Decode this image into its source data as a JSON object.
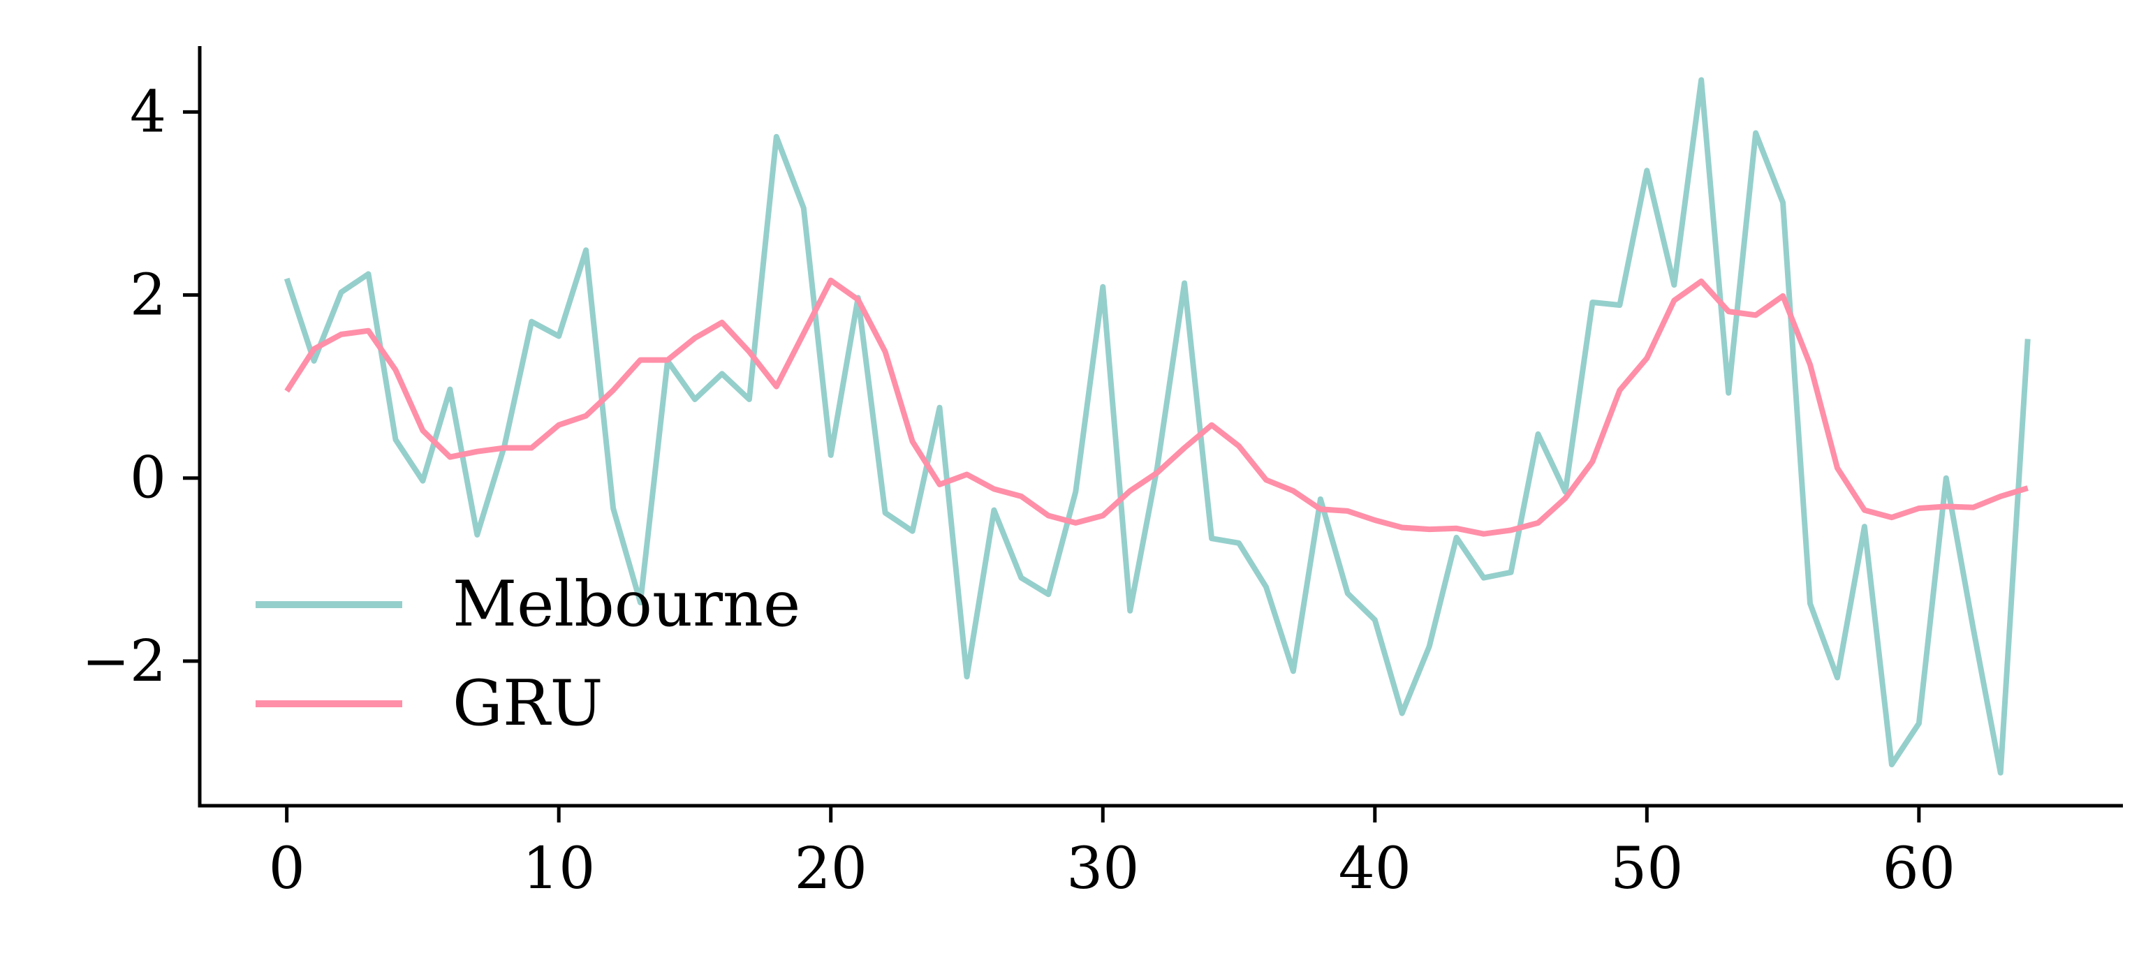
{
  "chart_data": {
    "type": "line",
    "title": "",
    "xlabel": "",
    "ylabel": "",
    "xlim": [
      -3.2,
      67.5
    ],
    "ylim": [
      -3.58,
      4.72
    ],
    "x_ticks": [
      0,
      10,
      20,
      30,
      40,
      50,
      60
    ],
    "y_ticks": [
      -2,
      0,
      2,
      4
    ],
    "x_tick_labels": [
      "0",
      "10",
      "20",
      "30",
      "40",
      "50",
      "60"
    ],
    "y_tick_labels": [
      "−2",
      "0",
      "2",
      "4"
    ],
    "grid": false,
    "legend_position": "lower-left",
    "series": [
      {
        "name": "Melbourne",
        "color": "#95CFCC",
        "x": [
          0,
          1,
          2,
          3,
          4,
          5,
          6,
          7,
          8,
          9,
          10,
          11,
          12,
          13,
          14,
          15,
          16,
          17,
          18,
          19,
          20,
          21,
          22,
          23,
          24,
          25,
          26,
          27,
          28,
          29,
          30,
          31,
          32,
          33,
          34,
          35,
          36,
          37,
          38,
          39,
          40,
          41,
          42,
          43,
          44,
          45,
          46,
          47,
          48,
          49,
          50,
          51,
          52,
          53,
          54,
          55,
          56,
          57,
          58,
          59,
          60,
          61,
          62,
          63,
          64
        ],
        "values": [
          2.18,
          1.28,
          2.03,
          2.23,
          0.42,
          -0.03,
          0.97,
          -0.62,
          0.35,
          1.71,
          1.55,
          2.49,
          -0.33,
          -1.36,
          1.28,
          0.86,
          1.14,
          0.86,
          3.73,
          2.95,
          0.25,
          1.97,
          -0.38,
          -0.58,
          0.77,
          -2.17,
          -0.35,
          -1.09,
          -1.27,
          -0.15,
          2.09,
          -1.45,
          0.12,
          2.13,
          -0.66,
          -0.71,
          -1.19,
          -2.11,
          -0.23,
          -1.26,
          -1.55,
          -2.57,
          -1.84,
          -0.65,
          -1.09,
          -1.03,
          0.48,
          -0.15,
          1.92,
          1.89,
          3.36,
          2.11,
          4.35,
          0.93,
          3.77,
          3.01,
          -1.37,
          -2.18,
          -0.53,
          -3.13,
          -2.68,
          0.0,
          -1.65,
          -3.22,
          1.52
        ]
      },
      {
        "name": "GRU",
        "color": "#FF8FA8",
        "x": [
          0,
          1,
          2,
          3,
          4,
          5,
          6,
          7,
          8,
          9,
          10,
          11,
          12,
          13,
          14,
          15,
          16,
          17,
          18,
          19,
          20,
          21,
          22,
          23,
          24,
          25,
          26,
          27,
          28,
          29,
          30,
          31,
          32,
          33,
          34,
          35,
          36,
          37,
          38,
          39,
          40,
          41,
          42,
          43,
          44,
          45,
          46,
          47,
          48,
          49,
          50,
          51,
          52,
          53,
          54,
          55,
          56,
          57,
          58,
          59,
          60,
          61,
          62,
          63,
          64
        ],
        "values": [
          0.95,
          1.41,
          1.57,
          1.61,
          1.18,
          0.52,
          0.23,
          0.29,
          0.33,
          0.33,
          0.58,
          0.68,
          0.96,
          1.29,
          1.29,
          1.53,
          1.7,
          1.38,
          1.0,
          1.58,
          2.16,
          1.95,
          1.38,
          0.4,
          -0.07,
          0.04,
          -0.12,
          -0.2,
          -0.41,
          -0.49,
          -0.41,
          -0.14,
          0.06,
          0.33,
          0.58,
          0.35,
          -0.02,
          -0.14,
          -0.34,
          -0.36,
          -0.46,
          -0.54,
          -0.56,
          -0.55,
          -0.61,
          -0.57,
          -0.49,
          -0.22,
          0.18,
          0.96,
          1.31,
          1.94,
          2.15,
          1.82,
          1.78,
          1.99,
          1.24,
          0.11,
          -0.35,
          -0.43,
          -0.33,
          -0.31,
          -0.32,
          -0.2,
          -0.11
        ]
      }
    ]
  }
}
